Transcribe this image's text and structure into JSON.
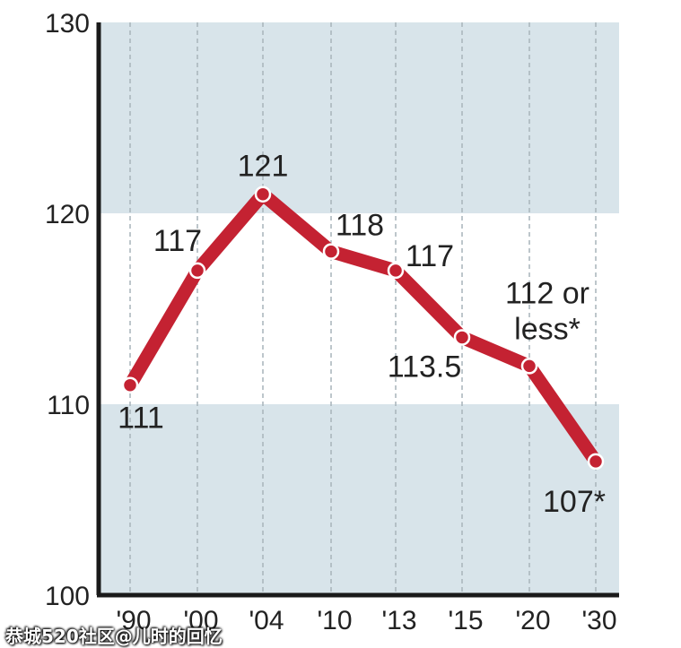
{
  "chart_data": {
    "type": "line",
    "categories": [
      "'90",
      "'00",
      "'04",
      "'10",
      "'13",
      "'15",
      "'20",
      "'30"
    ],
    "values": [
      111,
      117,
      121,
      118,
      117,
      113.5,
      112,
      107
    ],
    "data_labels": [
      "111",
      "117",
      "121",
      "118",
      "117",
      "113.5",
      "112 or|less*",
      "107*"
    ],
    "yticks": [
      "100",
      "110",
      "120",
      "130"
    ],
    "ylim": [
      100,
      130
    ],
    "grid": true,
    "colors": {
      "line": "#c42232",
      "band": "#d8e4ea",
      "background": "#ffffff",
      "axis": "#1a1a1a"
    }
  },
  "watermark": "恭城520社区@儿时的回忆"
}
